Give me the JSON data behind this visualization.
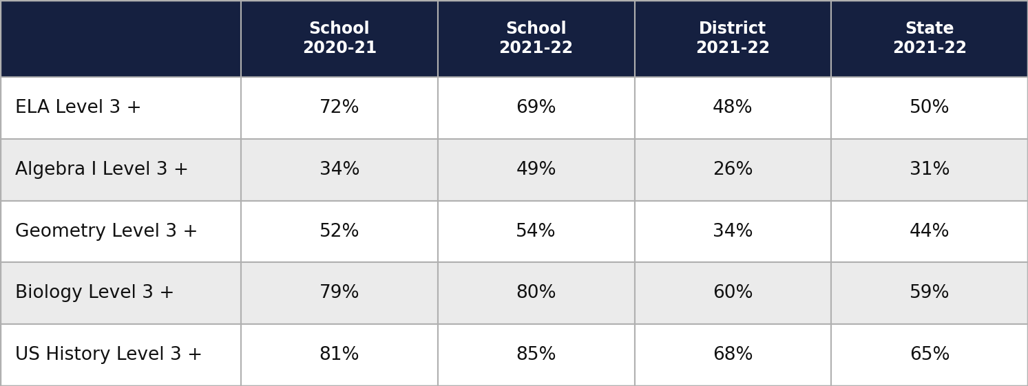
{
  "col_headers": [
    [
      "School",
      "2020-21"
    ],
    [
      "School",
      "2021-22"
    ],
    [
      "District",
      "2021-22"
    ],
    [
      "State",
      "2021-22"
    ]
  ],
  "row_labels": [
    "ELA Level 3 +",
    "Algebra I Level 3 +",
    "Geometry Level 3 +",
    "Biology Level 3 +",
    "US History Level 3 +"
  ],
  "data": [
    [
      "72%",
      "69%",
      "48%",
      "50%"
    ],
    [
      "34%",
      "49%",
      "26%",
      "31%"
    ],
    [
      "52%",
      "54%",
      "34%",
      "44%"
    ],
    [
      "79%",
      "80%",
      "60%",
      "59%"
    ],
    [
      "81%",
      "85%",
      "68%",
      "65%"
    ]
  ],
  "header_bg_color": "#152040",
  "header_text_color": "#ffffff",
  "row_bg_white": "#ffffff",
  "row_bg_gray": "#ebebeb",
  "data_text_color": "#111111",
  "row_label_text_color": "#111111",
  "grid_color": "#b0b0b0",
  "outer_border_color": "#b0b0b0",
  "header_fontsize": 17,
  "data_fontsize": 19,
  "label_fontsize": 19,
  "fig_width": 14.93,
  "fig_height": 5.61
}
